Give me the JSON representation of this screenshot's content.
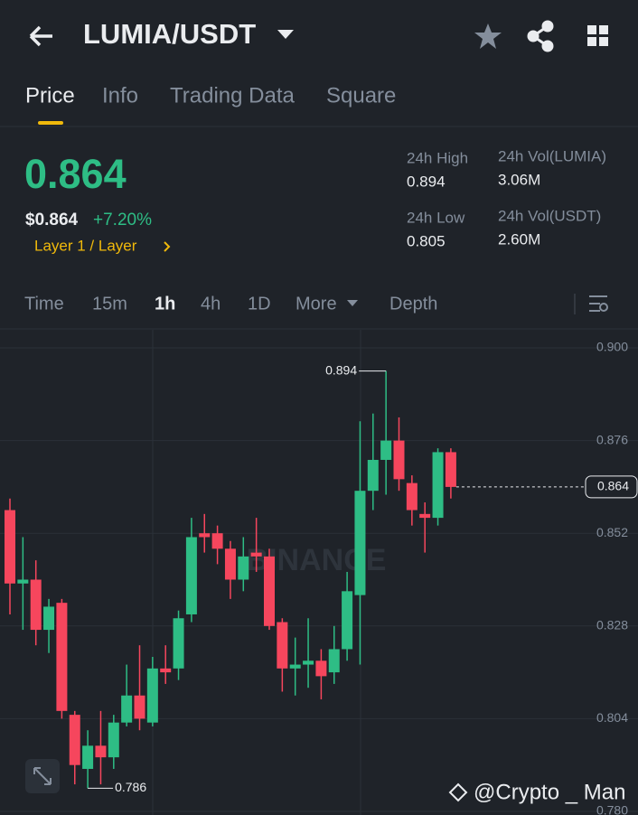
{
  "header": {
    "pair": "LUMIA/USDT"
  },
  "tabs": [
    "Price",
    "Info",
    "Trading Data",
    "Square"
  ],
  "price": {
    "last": "0.864",
    "usd": "$0.864",
    "change": "+7.20%",
    "tag": "Layer 1 / Layer"
  },
  "stats": [
    {
      "label": "24h High",
      "value": "0.894"
    },
    {
      "label": "24h Vol(LUMIA)",
      "value": "3.06M"
    },
    {
      "label": "24h Low",
      "value": "0.805"
    },
    {
      "label": "24h Vol(USDT)",
      "value": "2.60M"
    }
  ],
  "intervals": [
    "Time",
    "15m",
    "1h",
    "4h",
    "1D",
    "More",
    "Depth"
  ],
  "watermark": "BINANCE",
  "credit": "@Crypto _ Man",
  "chart_data": {
    "type": "candlestick",
    "up_color": "#2ebd85",
    "down_color": "#f6465d",
    "open": [
      0.858,
      0.839,
      0.84,
      0.827,
      0.834,
      0.805,
      0.791,
      0.797,
      0.794,
      0.803,
      0.81,
      0.803,
      0.817,
      0.817,
      0.831,
      0.852,
      0.852,
      0.848,
      0.84,
      0.847,
      0.846,
      0.829,
      0.817,
      0.818,
      0.819,
      0.816,
      0.822,
      0.836,
      0.863,
      0.871,
      0.876,
      0.865,
      0.857,
      0.856,
      0.873
    ],
    "high": [
      0.861,
      0.851,
      0.845,
      0.835,
      0.835,
      0.806,
      0.801,
      0.806,
      0.805,
      0.818,
      0.823,
      0.82,
      0.823,
      0.832,
      0.856,
      0.857,
      0.854,
      0.85,
      0.851,
      0.856,
      0.848,
      0.83,
      0.825,
      0.83,
      0.822,
      0.828,
      0.842,
      0.881,
      0.883,
      0.894,
      0.882,
      0.867,
      0.86,
      0.874,
      0.874
    ],
    "low": [
      0.831,
      0.827,
      0.823,
      0.821,
      0.804,
      0.787,
      0.786,
      0.787,
      0.791,
      0.802,
      0.801,
      0.802,
      0.813,
      0.814,
      0.829,
      0.847,
      0.844,
      0.835,
      0.837,
      0.842,
      0.827,
      0.811,
      0.81,
      0.812,
      0.809,
      0.813,
      0.819,
      0.818,
      0.858,
      0.862,
      0.863,
      0.854,
      0.847,
      0.854,
      0.861
    ],
    "close": [
      0.839,
      0.84,
      0.827,
      0.833,
      0.806,
      0.792,
      0.797,
      0.794,
      0.803,
      0.81,
      0.804,
      0.817,
      0.816,
      0.83,
      0.851,
      0.851,
      0.848,
      0.84,
      0.846,
      0.846,
      0.828,
      0.817,
      0.818,
      0.819,
      0.815,
      0.822,
      0.837,
      0.863,
      0.871,
      0.876,
      0.866,
      0.858,
      0.856,
      0.873,
      0.864
    ],
    "ylim": [
      0.78,
      0.9
    ],
    "yticks": [
      {
        "value": 0.9,
        "label": "0.900"
      },
      0.876,
      0.852,
      0.828,
      0.804,
      {
        "value": 0.78,
        "label": "0.780"
      }
    ],
    "grid": true
  }
}
